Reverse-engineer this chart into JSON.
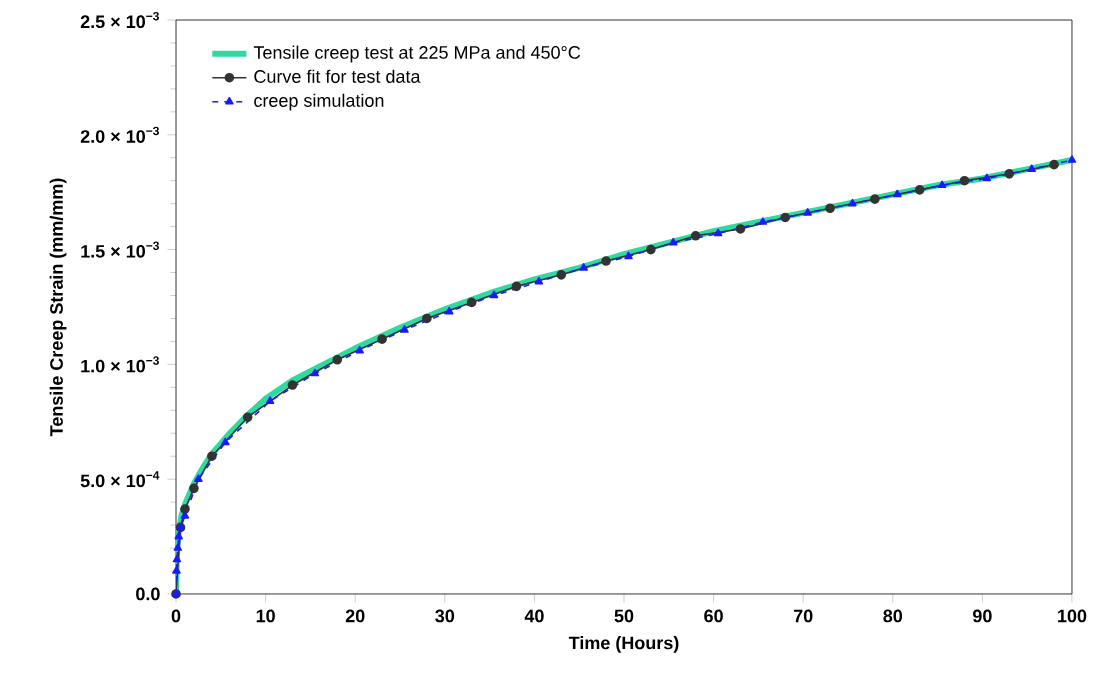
{
  "chart_data": {
    "type": "line",
    "xlabel": "Time (Hours)",
    "ylabel": "Tensile Creep Strain (mm/mm)",
    "xlim": [
      0,
      100
    ],
    "ylim": [
      0,
      0.0025
    ],
    "xticks": [
      0,
      10,
      20,
      30,
      40,
      50,
      60,
      70,
      80,
      90,
      100
    ],
    "yticks": [
      {
        "value": 0,
        "label": "0.0"
      },
      {
        "value": 0.0005,
        "label": "5.0 × 10$^{−4}$"
      },
      {
        "value": 0.001,
        "label": "1.0 × 10$^{−3}$"
      },
      {
        "value": 0.0015,
        "label": "1.5 × 10$^{−3}$"
      },
      {
        "value": 0.002,
        "label": "2.0 × 10$^{−3}$"
      },
      {
        "value": 0.0025,
        "label": "2.5 × 10$^{−3}$"
      }
    ],
    "grid": false,
    "legend": "top left",
    "series": [
      {
        "name": "Tensile creep test at 225 MPa and 450°C",
        "color": "#2fd9a0",
        "marker": "none",
        "line_style": "solid",
        "x": [
          0,
          0.1,
          0.3,
          0.6,
          1,
          2,
          3,
          4,
          6,
          8,
          10,
          13,
          16,
          20,
          25,
          30,
          35,
          40,
          45,
          50,
          55,
          60,
          65,
          70,
          75,
          80,
          85,
          90,
          95,
          100
        ],
        "values": [
          0,
          0.00018,
          0.00027,
          0.00034,
          0.00039,
          0.00048,
          0.00055,
          0.00061,
          0.0007,
          0.00078,
          0.00085,
          0.00093,
          0.00099,
          0.00107,
          0.00116,
          0.00124,
          0.00131,
          0.00137,
          0.00142,
          0.00148,
          0.00153,
          0.00158,
          0.00162,
          0.00166,
          0.0017,
          0.00174,
          0.00178,
          0.00181,
          0.00185,
          0.00189
        ]
      },
      {
        "name": "Curve fit for test data",
        "color": "#333333",
        "marker": "circle",
        "line_style": "solid",
        "x": [
          0,
          0.5,
          1,
          2,
          4,
          8,
          13,
          18,
          23,
          28,
          33,
          38,
          43,
          48,
          53,
          58,
          63,
          68,
          73,
          78,
          83,
          88,
          93,
          98
        ],
        "values": [
          0,
          0.00029,
          0.00037,
          0.00046,
          0.0006,
          0.00077,
          0.00091,
          0.00102,
          0.00111,
          0.0012,
          0.00127,
          0.00134,
          0.00139,
          0.00145,
          0.0015,
          0.00156,
          0.00159,
          0.00164,
          0.00168,
          0.00172,
          0.00176,
          0.0018,
          0.00183,
          0.00187
        ]
      },
      {
        "name": "creep simulation",
        "color": "#1a1aff",
        "marker": "triangle",
        "line_style": "dashed",
        "x": [
          0,
          0.05,
          0.1,
          0.2,
          0.3,
          0.5,
          1,
          2.5,
          5.5,
          10.5,
          15.5,
          20.5,
          25.5,
          30.5,
          35.5,
          40.5,
          45.5,
          50.5,
          55.5,
          60.5,
          65.5,
          70.5,
          75.5,
          80.5,
          85.5,
          90.5,
          95.5,
          100
        ],
        "values": [
          0,
          0.0001,
          0.00015,
          0.0002,
          0.00025,
          0.00029,
          0.00034,
          0.0005,
          0.00066,
          0.00084,
          0.00096,
          0.00106,
          0.00115,
          0.00123,
          0.0013,
          0.00136,
          0.00142,
          0.00147,
          0.00153,
          0.00157,
          0.00162,
          0.00166,
          0.0017,
          0.00174,
          0.00178,
          0.00181,
          0.00185,
          0.00189
        ]
      }
    ]
  }
}
